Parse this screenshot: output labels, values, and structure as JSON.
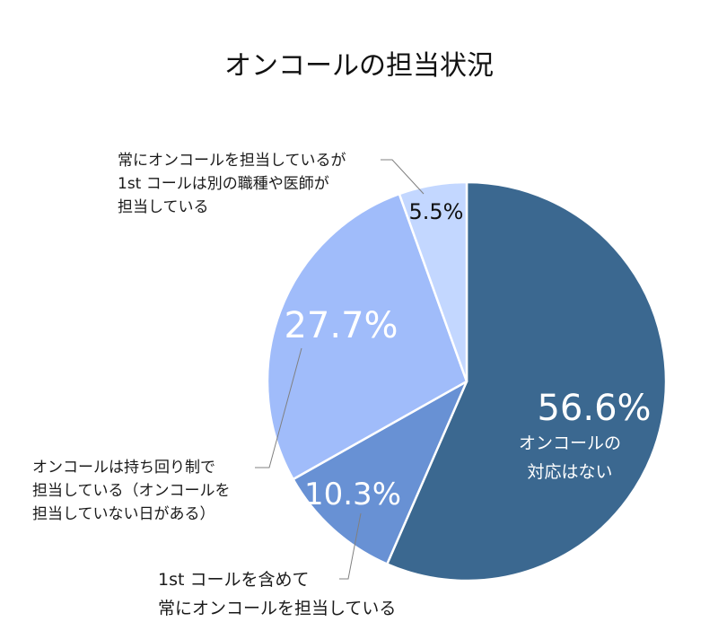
{
  "chart_data": {
    "type": "pie",
    "title": "オンコールの担当状況",
    "start": "top",
    "direction": "clockwise",
    "slices": [
      {
        "value": 56.6,
        "label_pct": "56.6%",
        "label": "オンコールの\n対応はない",
        "color": "#3b6890"
      },
      {
        "value": 10.3,
        "label_pct": "10.3%",
        "label": "1st コールを含めて\n常にオンコールを担当している",
        "color": "#6891d4"
      },
      {
        "value": 27.7,
        "label_pct": "27.7%",
        "label": "オンコールは持ち回り制で\n担当している（オンコールを\n担当していない日がある）",
        "color": "#a0bcfa"
      },
      {
        "value": 5.5,
        "label_pct": "5.5%",
        "label": "常にオンコールを担当しているが\n1st コールは別の職種や医師が\n担当している",
        "color": "#c3d7ff"
      }
    ]
  }
}
